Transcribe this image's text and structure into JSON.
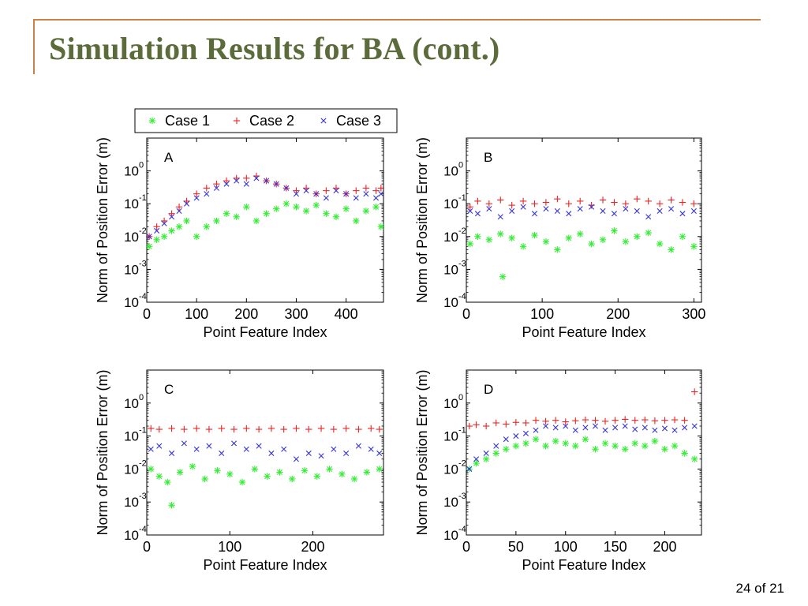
{
  "slide": {
    "title": "Simulation Results for BA (cont.)",
    "page_number": "24 of 21"
  },
  "colors": {
    "title": "#5c6b3a",
    "frame": "#c8824a"
  },
  "legend": {
    "items": [
      {
        "label": "Case 1",
        "marker": "*",
        "color": "#33ee33"
      },
      {
        "label": "Case 2",
        "marker": "+",
        "color": "#ee2222"
      },
      {
        "label": "Case 3",
        "marker": "x",
        "color": "#3333dd"
      }
    ]
  },
  "chart_data": [
    {
      "type": "scatter",
      "panel_label": "A",
      "xlabel": "Point Feature Index",
      "ylabel": "Norm of Position Error (m)",
      "xlim": [
        0,
        475
      ],
      "ylim": [
        0.0001,
        10
      ],
      "yscale": "log",
      "xticks": [
        0,
        100,
        200,
        300,
        400
      ],
      "yticks": [
        0.0001,
        0.001,
        0.01,
        0.1,
        1
      ],
      "ytick_exponents": [
        "-4",
        "-3",
        "-2",
        "-1",
        "0"
      ],
      "series": [
        {
          "name": "Case 1",
          "color": "#33ee33",
          "marker": "*",
          "x": [
            5,
            20,
            35,
            50,
            65,
            80,
            100,
            120,
            140,
            160,
            180,
            200,
            220,
            240,
            260,
            280,
            300,
            320,
            340,
            360,
            380,
            400,
            420,
            440,
            460,
            470
          ],
          "y": [
            0.005,
            0.008,
            0.01,
            0.015,
            0.02,
            0.03,
            0.01,
            0.02,
            0.03,
            0.05,
            0.04,
            0.08,
            0.03,
            0.05,
            0.07,
            0.1,
            0.08,
            0.06,
            0.09,
            0.05,
            0.04,
            0.07,
            0.03,
            0.06,
            0.08,
            0.02
          ]
        },
        {
          "name": "Case 2",
          "color": "#ee2222",
          "marker": "+",
          "x": [
            5,
            20,
            35,
            50,
            65,
            80,
            100,
            120,
            140,
            160,
            180,
            200,
            220,
            240,
            260,
            280,
            300,
            320,
            340,
            360,
            380,
            400,
            420,
            440,
            460,
            470
          ],
          "y": [
            0.01,
            0.02,
            0.03,
            0.05,
            0.08,
            0.12,
            0.2,
            0.3,
            0.4,
            0.5,
            0.6,
            0.6,
            0.7,
            0.5,
            0.4,
            0.3,
            0.25,
            0.3,
            0.2,
            0.25,
            0.3,
            0.2,
            0.25,
            0.3,
            0.25,
            0.3
          ]
        },
        {
          "name": "Case 3",
          "color": "#3333dd",
          "marker": "x",
          "x": [
            5,
            20,
            35,
            50,
            65,
            80,
            100,
            120,
            140,
            160,
            180,
            200,
            220,
            240,
            260,
            280,
            300,
            320,
            340,
            360,
            380,
            400,
            420,
            440,
            460,
            470
          ],
          "y": [
            0.01,
            0.015,
            0.025,
            0.04,
            0.06,
            0.1,
            0.15,
            0.2,
            0.3,
            0.4,
            0.5,
            0.4,
            0.6,
            0.5,
            0.4,
            0.3,
            0.2,
            0.25,
            0.2,
            0.15,
            0.25,
            0.2,
            0.15,
            0.2,
            0.15,
            0.2
          ]
        }
      ]
    },
    {
      "type": "scatter",
      "panel_label": "B",
      "xlabel": "Point Feature Index",
      "ylabel": "Norm of Position Error (m)",
      "xlim": [
        0,
        310
      ],
      "ylim": [
        0.0001,
        10
      ],
      "yscale": "log",
      "xticks": [
        0,
        100,
        200,
        300
      ],
      "yticks": [
        0.0001,
        0.001,
        0.01,
        0.1,
        1
      ],
      "ytick_exponents": [
        "-4",
        "-3",
        "-2",
        "-1",
        "0"
      ],
      "series": [
        {
          "name": "Case 1",
          "color": "#33ee33",
          "marker": "*",
          "x": [
            5,
            15,
            30,
            45,
            48,
            60,
            75,
            90,
            105,
            120,
            135,
            150,
            165,
            180,
            195,
            210,
            225,
            240,
            255,
            270,
            285,
            300
          ],
          "y": [
            0.006,
            0.01,
            0.008,
            0.012,
            0.0006,
            0.009,
            0.005,
            0.011,
            0.007,
            0.004,
            0.009,
            0.012,
            0.006,
            0.008,
            0.015,
            0.007,
            0.01,
            0.013,
            0.006,
            0.004,
            0.01,
            0.005
          ]
        },
        {
          "name": "Case 2",
          "color": "#ee2222",
          "marker": "+",
          "x": [
            5,
            15,
            30,
            45,
            60,
            75,
            90,
            105,
            120,
            135,
            150,
            165,
            180,
            195,
            210,
            225,
            240,
            255,
            270,
            285,
            300
          ],
          "y": [
            0.08,
            0.12,
            0.1,
            0.13,
            0.09,
            0.12,
            0.1,
            0.11,
            0.14,
            0.1,
            0.12,
            0.09,
            0.13,
            0.11,
            0.1,
            0.14,
            0.12,
            0.1,
            0.13,
            0.11,
            0.1
          ]
        },
        {
          "name": "Case 3",
          "color": "#3333dd",
          "marker": "x",
          "x": [
            5,
            15,
            30,
            45,
            60,
            75,
            90,
            105,
            120,
            135,
            150,
            165,
            180,
            195,
            210,
            225,
            240,
            255,
            270,
            285,
            300
          ],
          "y": [
            0.06,
            0.05,
            0.07,
            0.04,
            0.06,
            0.08,
            0.05,
            0.07,
            0.06,
            0.05,
            0.07,
            0.08,
            0.06,
            0.05,
            0.07,
            0.06,
            0.04,
            0.06,
            0.07,
            0.05,
            0.06
          ]
        }
      ]
    },
    {
      "type": "scatter",
      "panel_label": "C",
      "xlabel": "Point Feature Index",
      "ylabel": "Norm of Position Error (m)",
      "xlim": [
        0,
        285
      ],
      "ylim": [
        0.0001,
        10
      ],
      "yscale": "log",
      "xticks": [
        0,
        100,
        200
      ],
      "yticks": [
        0.0001,
        0.001,
        0.01,
        0.1,
        1
      ],
      "ytick_exponents": [
        "-4",
        "-3",
        "-2",
        "-1",
        "0"
      ],
      "series": [
        {
          "name": "Case 1",
          "color": "#33ee33",
          "marker": "*",
          "x": [
            5,
            15,
            25,
            30,
            40,
            55,
            70,
            85,
            100,
            115,
            130,
            145,
            160,
            175,
            190,
            205,
            220,
            235,
            250,
            265,
            280
          ],
          "y": [
            0.01,
            0.006,
            0.004,
            0.0008,
            0.008,
            0.012,
            0.005,
            0.009,
            0.007,
            0.004,
            0.01,
            0.006,
            0.008,
            0.005,
            0.009,
            0.006,
            0.01,
            0.007,
            0.005,
            0.008,
            0.01
          ]
        },
        {
          "name": "Case 2",
          "color": "#ee2222",
          "marker": "+",
          "x": [
            5,
            15,
            30,
            45,
            60,
            75,
            90,
            105,
            120,
            135,
            150,
            165,
            180,
            195,
            210,
            225,
            240,
            255,
            270,
            280
          ],
          "y": [
            0.17,
            0.16,
            0.17,
            0.16,
            0.17,
            0.16,
            0.17,
            0.16,
            0.17,
            0.16,
            0.17,
            0.16,
            0.17,
            0.16,
            0.17,
            0.16,
            0.17,
            0.16,
            0.17,
            0.16
          ]
        },
        {
          "name": "Case 3",
          "color": "#3333dd",
          "marker": "x",
          "x": [
            5,
            15,
            30,
            45,
            60,
            75,
            90,
            105,
            120,
            135,
            150,
            165,
            180,
            195,
            210,
            225,
            240,
            255,
            270,
            280
          ],
          "y": [
            0.04,
            0.05,
            0.03,
            0.06,
            0.04,
            0.05,
            0.03,
            0.06,
            0.04,
            0.05,
            0.03,
            0.04,
            0.02,
            0.03,
            0.025,
            0.04,
            0.03,
            0.05,
            0.04,
            0.03
          ]
        }
      ]
    },
    {
      "type": "scatter",
      "panel_label": "D",
      "xlabel": "Point Feature Index",
      "ylabel": "Norm of Position Error (m)",
      "xlim": [
        0,
        237
      ],
      "ylim": [
        0.0001,
        10
      ],
      "yscale": "log",
      "xticks": [
        0,
        50,
        100,
        150,
        200
      ],
      "yticks": [
        0.0001,
        0.001,
        0.01,
        0.1,
        1
      ],
      "ytick_exponents": [
        "-4",
        "-3",
        "-2",
        "-1",
        "0"
      ],
      "series": [
        {
          "name": "Case 1",
          "color": "#33ee33",
          "marker": "*",
          "x": [
            3,
            10,
            20,
            30,
            40,
            50,
            60,
            70,
            80,
            90,
            100,
            110,
            120,
            130,
            140,
            150,
            160,
            170,
            180,
            190,
            200,
            210,
            220,
            230
          ],
          "y": [
            0.01,
            0.015,
            0.02,
            0.03,
            0.04,
            0.05,
            0.06,
            0.08,
            0.05,
            0.07,
            0.06,
            0.05,
            0.08,
            0.04,
            0.06,
            0.05,
            0.04,
            0.06,
            0.05,
            0.07,
            0.04,
            0.05,
            0.03,
            0.02
          ]
        },
        {
          "name": "Case 2",
          "color": "#ee2222",
          "marker": "+",
          "x": [
            3,
            10,
            20,
            30,
            40,
            50,
            60,
            70,
            80,
            90,
            100,
            110,
            120,
            130,
            140,
            150,
            160,
            170,
            180,
            190,
            200,
            210,
            220,
            230
          ],
          "y": [
            0.2,
            0.22,
            0.2,
            0.25,
            0.23,
            0.26,
            0.25,
            0.3,
            0.28,
            0.3,
            0.27,
            0.29,
            0.31,
            0.3,
            0.28,
            0.3,
            0.32,
            0.3,
            0.31,
            0.29,
            0.3,
            0.31,
            0.3,
            2.2
          ]
        },
        {
          "name": "Case 3",
          "color": "#3333dd",
          "marker": "x",
          "x": [
            3,
            10,
            20,
            30,
            40,
            50,
            60,
            70,
            80,
            90,
            100,
            110,
            120,
            130,
            140,
            150,
            160,
            170,
            180,
            190,
            200,
            210,
            220,
            230
          ],
          "y": [
            0.01,
            0.02,
            0.03,
            0.05,
            0.08,
            0.1,
            0.12,
            0.15,
            0.2,
            0.18,
            0.2,
            0.15,
            0.18,
            0.2,
            0.15,
            0.18,
            0.2,
            0.16,
            0.18,
            0.15,
            0.17,
            0.15,
            0.18,
            0.2
          ]
        }
      ]
    }
  ]
}
